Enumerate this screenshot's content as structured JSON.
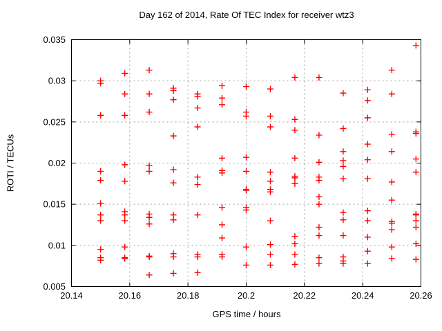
{
  "chart_data": {
    "type": "scatter",
    "title": "Day 162 of 2014, Rate Of TEC Index for receiver wtz3",
    "xlabel": "GPS time / hours",
    "ylabel": "ROTI / TECUs",
    "xlim": [
      20.14,
      20.26
    ],
    "ylim": [
      0.005,
      0.035
    ],
    "x_ticks": [
      20.14,
      20.16,
      20.18,
      20.2,
      20.22,
      20.24,
      20.26
    ],
    "x_tick_labels": [
      "20.14",
      "20.16",
      "20.18",
      "20.2",
      "20.22",
      "20.24",
      "20.26"
    ],
    "y_ticks": [
      0.005,
      0.01,
      0.015,
      0.02,
      0.025,
      0.03,
      0.035
    ],
    "y_tick_labels": [
      "0.005",
      "0.01",
      "0.015",
      "0.02",
      "0.025",
      "0.03",
      "0.035"
    ],
    "grid": true,
    "legend_position": "none",
    "marker": {
      "shape": "plus",
      "color": "#ff0000",
      "size": 9
    },
    "colors": {
      "frame": "#000000",
      "grid": "#9e9e9e",
      "text": "#000000",
      "background": "#ffffff"
    },
    "series": [
      {
        "name": "ROTI",
        "points": [
          [
            20.15,
            0.03
          ],
          [
            20.15,
            0.0297
          ],
          [
            20.15,
            0.0258
          ],
          [
            20.15,
            0.019
          ],
          [
            20.15,
            0.0179
          ],
          [
            20.15,
            0.0151
          ],
          [
            20.15,
            0.0137
          ],
          [
            20.15,
            0.013
          ],
          [
            20.15,
            0.0095
          ],
          [
            20.15,
            0.0085
          ],
          [
            20.15,
            0.0082
          ],
          [
            20.1583,
            0.0309
          ],
          [
            20.1583,
            0.0284
          ],
          [
            20.1583,
            0.0258
          ],
          [
            20.1583,
            0.0198
          ],
          [
            20.1583,
            0.0178
          ],
          [
            20.1583,
            0.0141
          ],
          [
            20.1583,
            0.0137
          ],
          [
            20.1583,
            0.013
          ],
          [
            20.1583,
            0.0098
          ],
          [
            20.1583,
            0.0085
          ],
          [
            20.1583,
            0.0084
          ],
          [
            20.1667,
            0.0313
          ],
          [
            20.1667,
            0.0284
          ],
          [
            20.1667,
            0.0262
          ],
          [
            20.1667,
            0.0197
          ],
          [
            20.1667,
            0.019
          ],
          [
            20.1667,
            0.0138
          ],
          [
            20.1667,
            0.0134
          ],
          [
            20.1667,
            0.0126
          ],
          [
            20.1667,
            0.0087
          ],
          [
            20.1667,
            0.0086
          ],
          [
            20.1667,
            0.0064
          ],
          [
            20.175,
            0.0291
          ],
          [
            20.175,
            0.0288
          ],
          [
            20.175,
            0.0277
          ],
          [
            20.175,
            0.0233
          ],
          [
            20.175,
            0.0192
          ],
          [
            20.175,
            0.0176
          ],
          [
            20.175,
            0.0137
          ],
          [
            20.175,
            0.0131
          ],
          [
            20.175,
            0.009
          ],
          [
            20.175,
            0.0086
          ],
          [
            20.175,
            0.0066
          ],
          [
            20.1833,
            0.0284
          ],
          [
            20.1833,
            0.0281
          ],
          [
            20.1833,
            0.0267
          ],
          [
            20.1833,
            0.0244
          ],
          [
            20.1833,
            0.0183
          ],
          [
            20.1833,
            0.0174
          ],
          [
            20.1833,
            0.0137
          ],
          [
            20.1833,
            0.0089
          ],
          [
            20.1833,
            0.0086
          ],
          [
            20.1833,
            0.0067
          ],
          [
            20.1917,
            0.0294
          ],
          [
            20.1917,
            0.0279
          ],
          [
            20.1917,
            0.0271
          ],
          [
            20.1917,
            0.0206
          ],
          [
            20.1917,
            0.0191
          ],
          [
            20.1917,
            0.0188
          ],
          [
            20.1917,
            0.0146
          ],
          [
            20.1917,
            0.0125
          ],
          [
            20.1917,
            0.0109
          ],
          [
            20.1917,
            0.0089
          ],
          [
            20.1917,
            0.0086
          ],
          [
            20.2,
            0.0293
          ],
          [
            20.2,
            0.0262
          ],
          [
            20.2,
            0.0257
          ],
          [
            20.2,
            0.0207
          ],
          [
            20.2,
            0.019
          ],
          [
            20.2,
            0.0168
          ],
          [
            20.2,
            0.0167
          ],
          [
            20.2,
            0.0146
          ],
          [
            20.2,
            0.0143
          ],
          [
            20.2,
            0.0098
          ],
          [
            20.2,
            0.0076
          ],
          [
            20.2083,
            0.029
          ],
          [
            20.2083,
            0.0257
          ],
          [
            20.2083,
            0.0244
          ],
          [
            20.2083,
            0.0189
          ],
          [
            20.2083,
            0.0178
          ],
          [
            20.2083,
            0.0168
          ],
          [
            20.2083,
            0.0165
          ],
          [
            20.2083,
            0.013
          ],
          [
            20.2083,
            0.0101
          ],
          [
            20.2083,
            0.0089
          ],
          [
            20.2083,
            0.0076
          ],
          [
            20.2167,
            0.0304
          ],
          [
            20.2167,
            0.0253
          ],
          [
            20.2167,
            0.024
          ],
          [
            20.2167,
            0.0206
          ],
          [
            20.2167,
            0.0184
          ],
          [
            20.2167,
            0.0182
          ],
          [
            20.2167,
            0.0175
          ],
          [
            20.2167,
            0.0111
          ],
          [
            20.2167,
            0.0102
          ],
          [
            20.2167,
            0.0089
          ],
          [
            20.2167,
            0.0077
          ],
          [
            20.225,
            0.0304
          ],
          [
            20.225,
            0.0234
          ],
          [
            20.225,
            0.0201
          ],
          [
            20.225,
            0.0183
          ],
          [
            20.225,
            0.0179
          ],
          [
            20.225,
            0.0159
          ],
          [
            20.225,
            0.015
          ],
          [
            20.225,
            0.0122
          ],
          [
            20.225,
            0.0112
          ],
          [
            20.225,
            0.0085
          ],
          [
            20.225,
            0.0078
          ],
          [
            20.2333,
            0.0285
          ],
          [
            20.2333,
            0.0242
          ],
          [
            20.2333,
            0.0214
          ],
          [
            20.2333,
            0.0203
          ],
          [
            20.2333,
            0.0196
          ],
          [
            20.2333,
            0.0181
          ],
          [
            20.2333,
            0.014
          ],
          [
            20.2333,
            0.0131
          ],
          [
            20.2333,
            0.0112
          ],
          [
            20.2333,
            0.0086
          ],
          [
            20.2333,
            0.0081
          ],
          [
            20.2333,
            0.0078
          ],
          [
            20.2417,
            0.0289
          ],
          [
            20.2417,
            0.0276
          ],
          [
            20.2417,
            0.0255
          ],
          [
            20.2417,
            0.0223
          ],
          [
            20.2417,
            0.0204
          ],
          [
            20.2417,
            0.0181
          ],
          [
            20.2417,
            0.0142
          ],
          [
            20.2417,
            0.013
          ],
          [
            20.2417,
            0.011
          ],
          [
            20.2417,
            0.0093
          ],
          [
            20.2417,
            0.0078
          ],
          [
            20.25,
            0.0313
          ],
          [
            20.25,
            0.0284
          ],
          [
            20.25,
            0.0235
          ],
          [
            20.25,
            0.0214
          ],
          [
            20.25,
            0.0177
          ],
          [
            20.25,
            0.0155
          ],
          [
            20.25,
            0.0129
          ],
          [
            20.25,
            0.0127
          ],
          [
            20.25,
            0.0119
          ],
          [
            20.25,
            0.0098
          ],
          [
            20.25,
            0.0084
          ],
          [
            20.2583,
            0.0343
          ],
          [
            20.2583,
            0.0238
          ],
          [
            20.2583,
            0.0236
          ],
          [
            20.2583,
            0.0205
          ],
          [
            20.2583,
            0.0189
          ],
          [
            20.2583,
            0.0138
          ],
          [
            20.2583,
            0.0137
          ],
          [
            20.2583,
            0.013
          ],
          [
            20.2583,
            0.0122
          ],
          [
            20.2583,
            0.0102
          ],
          [
            20.2583,
            0.0083
          ]
        ]
      }
    ]
  }
}
